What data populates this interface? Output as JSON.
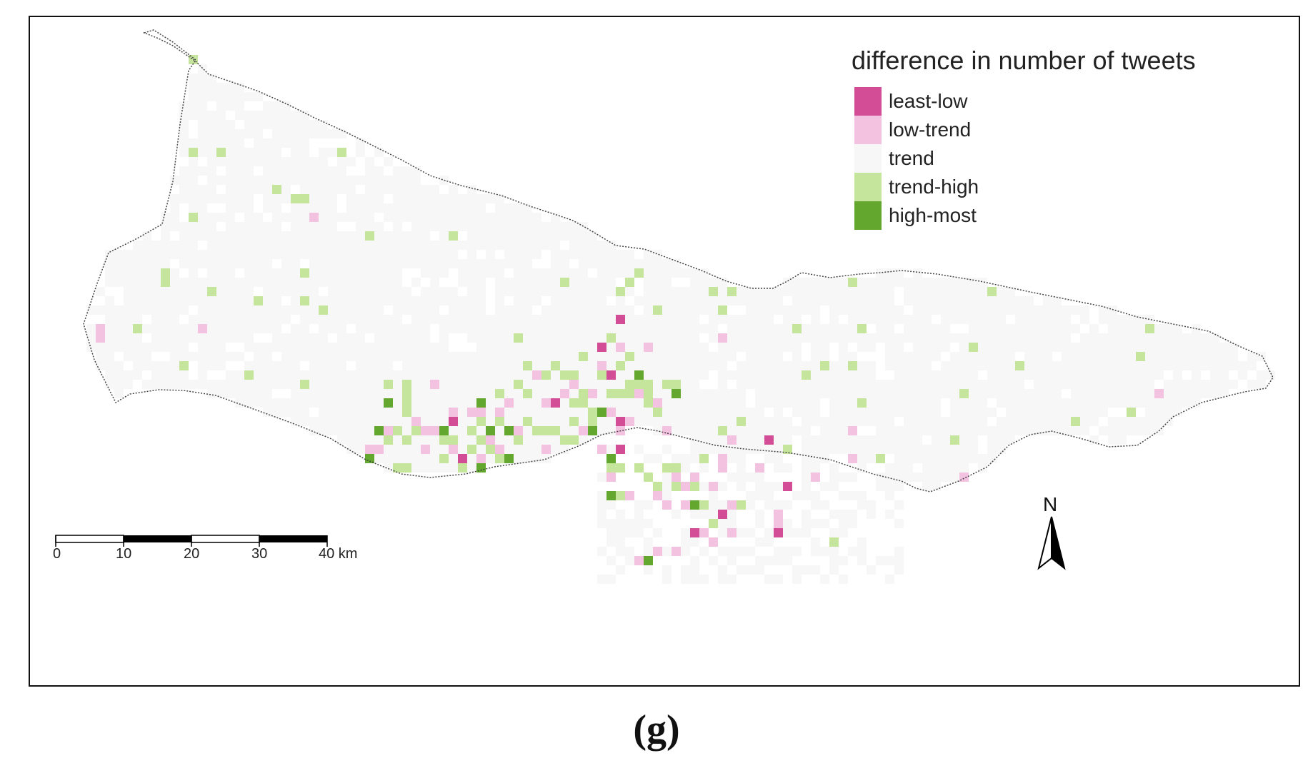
{
  "map": {
    "legend": {
      "title": "difference in number of tweets",
      "items": [
        {
          "label": "least-low",
          "color": "#d24d96"
        },
        {
          "label": "low-trend",
          "color": "#f4c2e1"
        },
        {
          "label": "trend",
          "color": "#f7f7f7"
        },
        {
          "label": "trend-high",
          "color": "#c6e59c"
        },
        {
          "label": "high-most",
          "color": "#63a72f"
        }
      ]
    },
    "scale_bar": {
      "ticks": [
        "0",
        "10",
        "20",
        "30",
        "40 km"
      ]
    },
    "north_arrow": {
      "label": "N",
      "icon": "north-arrow-icon"
    },
    "caption": "(g)"
  }
}
